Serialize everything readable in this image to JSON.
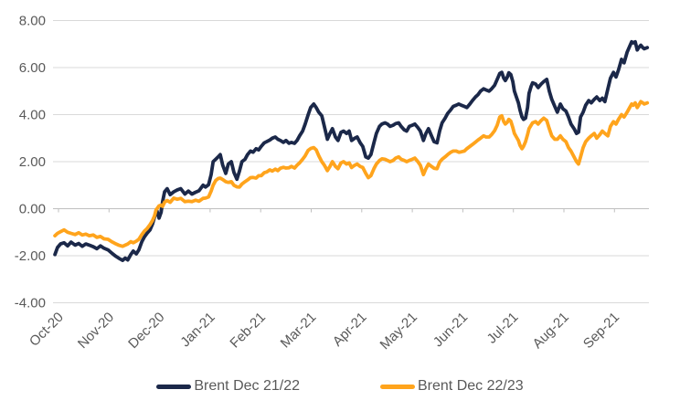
{
  "figure": {
    "background": "#ffffff"
  },
  "chart_data": {
    "type": "line",
    "title": "",
    "xlabel": "",
    "ylabel": "",
    "grid": true,
    "legend_position": "bottom",
    "colors": {
      "series1": "#1b2849",
      "series2": "#ffa41c",
      "grid": "#d9d9d9",
      "axis": "#bfbfbf",
      "label_text": "#595959"
    },
    "y_axis": {
      "ylim": [
        -4,
        8
      ],
      "tick_values": [
        8,
        6,
        4,
        2,
        0,
        -2,
        -4
      ],
      "tick_labels": [
        "8.00",
        "6.00",
        "4.00",
        "2.00",
        "0.00",
        "-2.00",
        "-4.00"
      ]
    },
    "x_axis": {
      "unit": "months since Oct-2020",
      "tick_values": [
        0,
        1,
        2,
        3,
        4,
        5,
        6,
        7,
        8,
        9,
        10,
        11
      ],
      "tick_labels": [
        "Oct-20",
        "Nov-20",
        "Dec-20",
        "Jan-21",
        "Feb-21",
        "Mar-21",
        "Apr-21",
        "May-21",
        "Jun-21",
        "Jul-21",
        "Aug-21",
        "Sep-21"
      ]
    },
    "x": [
      -0.07,
      -0.02,
      0.04,
      0.11,
      0.18,
      0.25,
      0.33,
      0.4,
      0.47,
      0.54,
      0.61,
      0.69,
      0.76,
      0.83,
      0.9,
      0.98,
      1.05,
      1.12,
      1.19,
      1.27,
      1.32,
      1.37,
      1.43,
      1.48,
      1.54,
      1.59,
      1.65,
      1.7,
      1.75,
      1.81,
      1.86,
      1.9,
      1.93,
      1.95,
      1.99,
      2.03,
      2.06,
      2.1,
      2.15,
      2.21,
      2.28,
      2.35,
      2.42,
      2.5,
      2.57,
      2.64,
      2.71,
      2.78,
      2.86,
      2.91,
      2.97,
      3.02,
      3.06,
      3.11,
      3.16,
      3.2,
      3.25,
      3.31,
      3.36,
      3.42,
      3.47,
      3.53,
      3.58,
      3.63,
      3.69,
      3.74,
      3.8,
      3.85,
      3.91,
      3.96,
      4.01,
      4.07,
      4.12,
      4.18,
      4.23,
      4.29,
      4.34,
      4.39,
      4.45,
      4.5,
      4.56,
      4.61,
      4.67,
      4.72,
      4.77,
      4.83,
      4.88,
      4.94,
      4.99,
      5.05,
      5.1,
      5.15,
      5.21,
      5.26,
      5.32,
      5.37,
      5.42,
      5.48,
      5.53,
      5.59,
      5.64,
      5.7,
      5.75,
      5.8,
      5.86,
      5.91,
      5.97,
      6.02,
      6.08,
      6.13,
      6.18,
      6.24,
      6.29,
      6.35,
      6.4,
      6.46,
      6.51,
      6.56,
      6.62,
      6.67,
      6.73,
      6.78,
      6.84,
      6.89,
      6.94,
      7.0,
      7.05,
      7.11,
      7.16,
      7.22,
      7.27,
      7.32,
      7.38,
      7.43,
      7.49,
      7.54,
      7.59,
      7.65,
      7.7,
      7.76,
      7.81,
      7.87,
      7.92,
      7.97,
      8.03,
      8.08,
      8.14,
      8.19,
      8.25,
      8.3,
      8.35,
      8.41,
      8.46,
      8.52,
      8.57,
      8.63,
      8.68,
      8.73,
      8.77,
      8.81,
      8.84,
      8.88,
      8.91,
      8.95,
      8.99,
      9.02,
      9.06,
      9.1,
      9.13,
      9.17,
      9.2,
      9.24,
      9.28,
      9.31,
      9.35,
      9.38,
      9.44,
      9.49,
      9.55,
      9.6,
      9.66,
      9.71,
      9.76,
      9.82,
      9.87,
      9.93,
      9.98,
      10.04,
      10.09,
      10.14,
      10.2,
      10.25,
      10.29,
      10.33,
      10.38,
      10.43,
      10.49,
      10.54,
      10.6,
      10.65,
      10.71,
      10.76,
      10.81,
      10.87,
      10.92,
      10.98,
      11.03,
      11.08,
      11.14,
      11.19,
      11.25,
      11.3,
      11.34,
      11.37,
      11.41,
      11.45,
      11.48,
      11.52,
      11.56,
      11.59,
      11.65
    ],
    "series": [
      {
        "name": "Brent Dec 21/22",
        "color_key": "series1",
        "values": [
          -1.95,
          -1.65,
          -1.5,
          -1.45,
          -1.58,
          -1.42,
          -1.55,
          -1.48,
          -1.6,
          -1.5,
          -1.55,
          -1.62,
          -1.7,
          -1.58,
          -1.68,
          -1.75,
          -1.88,
          -2.0,
          -2.1,
          -2.2,
          -2.1,
          -2.18,
          -1.95,
          -1.8,
          -1.92,
          -1.75,
          -1.4,
          -1.2,
          -1.05,
          -0.9,
          -0.65,
          -0.35,
          -0.15,
          -0.1,
          -0.4,
          -0.15,
          0.3,
          0.72,
          0.85,
          0.6,
          0.72,
          0.8,
          0.85,
          0.62,
          0.75,
          0.62,
          0.7,
          0.76,
          1.0,
          0.92,
          1.02,
          1.45,
          2.0,
          2.1,
          2.2,
          2.3,
          1.85,
          1.5,
          1.9,
          2.0,
          1.55,
          1.25,
          1.6,
          2.0,
          2.1,
          2.3,
          2.45,
          2.4,
          2.55,
          2.5,
          2.65,
          2.8,
          2.85,
          2.92,
          3.0,
          3.05,
          2.95,
          2.9,
          2.82,
          2.9,
          2.78,
          2.82,
          2.78,
          2.9,
          3.1,
          3.3,
          3.6,
          4.0,
          4.3,
          4.45,
          4.3,
          4.1,
          3.95,
          3.5,
          2.95,
          3.2,
          3.4,
          3.05,
          2.9,
          3.25,
          3.3,
          3.2,
          3.3,
          2.9,
          3.0,
          3.05,
          2.8,
          2.65,
          2.2,
          2.15,
          2.3,
          2.8,
          3.2,
          3.5,
          3.6,
          3.65,
          3.6,
          3.5,
          3.55,
          3.62,
          3.65,
          3.5,
          3.35,
          3.3,
          3.5,
          3.55,
          3.6,
          3.45,
          3.3,
          2.9,
          3.2,
          3.4,
          3.1,
          2.85,
          2.8,
          3.3,
          3.65,
          3.85,
          4.05,
          4.2,
          4.35,
          4.4,
          4.45,
          4.4,
          4.35,
          4.3,
          4.45,
          4.6,
          4.75,
          4.85,
          5.0,
          5.1,
          5.05,
          5.0,
          5.1,
          5.25,
          5.5,
          5.75,
          5.8,
          5.55,
          5.45,
          5.6,
          5.78,
          5.7,
          5.4,
          5.0,
          4.75,
          4.5,
          4.2,
          3.9,
          3.8,
          3.85,
          4.3,
          4.9,
          5.2,
          5.35,
          5.3,
          5.15,
          5.3,
          5.4,
          5.5,
          5.0,
          4.65,
          4.35,
          4.1,
          4.45,
          4.25,
          4.15,
          3.9,
          3.6,
          3.4,
          3.2,
          3.25,
          3.9,
          4.1,
          4.4,
          4.6,
          4.5,
          4.65,
          4.75,
          4.6,
          4.7,
          4.55,
          5.1,
          5.55,
          5.8,
          5.6,
          5.9,
          6.35,
          6.2,
          6.65,
          6.9,
          7.1,
          7.05,
          7.1,
          6.75,
          6.85,
          6.95,
          6.85,
          6.8,
          6.85
        ]
      },
      {
        "name": "Brent Dec 22/23",
        "color_key": "series2",
        "values": [
          -1.15,
          -1.05,
          -0.98,
          -0.9,
          -1.0,
          -1.05,
          -1.1,
          -1.02,
          -1.12,
          -1.08,
          -1.15,
          -1.12,
          -1.22,
          -1.18,
          -1.28,
          -1.3,
          -1.4,
          -1.48,
          -1.55,
          -1.6,
          -1.55,
          -1.5,
          -1.4,
          -1.45,
          -1.38,
          -1.3,
          -1.1,
          -0.95,
          -0.85,
          -0.68,
          -0.5,
          -0.3,
          -0.05,
          0.0,
          0.12,
          0.15,
          0.1,
          0.28,
          0.35,
          0.27,
          0.45,
          0.4,
          0.44,
          0.3,
          0.32,
          0.3,
          0.36,
          0.32,
          0.44,
          0.45,
          0.5,
          0.75,
          1.0,
          1.2,
          1.28,
          1.3,
          1.24,
          1.15,
          1.12,
          1.15,
          1.0,
          0.93,
          0.92,
          1.05,
          1.15,
          1.22,
          1.32,
          1.33,
          1.3,
          1.4,
          1.4,
          1.53,
          1.56,
          1.65,
          1.6,
          1.68,
          1.62,
          1.72,
          1.76,
          1.73,
          1.74,
          1.8,
          1.73,
          1.85,
          1.95,
          2.1,
          2.25,
          2.48,
          2.56,
          2.6,
          2.5,
          2.25,
          2.0,
          1.85,
          1.62,
          1.8,
          2.0,
          1.8,
          1.7,
          1.95,
          2.0,
          1.9,
          1.95,
          1.75,
          1.85,
          1.9,
          1.8,
          1.75,
          1.5,
          1.32,
          1.4,
          1.7,
          1.9,
          2.05,
          2.12,
          2.1,
          2.05,
          2.0,
          2.05,
          2.15,
          2.2,
          2.1,
          2.05,
          2.0,
          2.05,
          2.1,
          2.15,
          2.0,
          1.85,
          1.45,
          1.7,
          1.9,
          1.8,
          1.72,
          1.7,
          1.98,
          2.1,
          2.2,
          2.3,
          2.4,
          2.45,
          2.45,
          2.4,
          2.42,
          2.45,
          2.55,
          2.65,
          2.73,
          2.83,
          2.92,
          3.0,
          3.1,
          3.05,
          3.05,
          3.15,
          3.32,
          3.55,
          3.9,
          3.95,
          3.7,
          3.6,
          3.68,
          3.8,
          3.72,
          3.45,
          3.2,
          3.05,
          2.9,
          2.7,
          2.55,
          2.65,
          2.85,
          3.15,
          3.4,
          3.55,
          3.65,
          3.7,
          3.6,
          3.75,
          3.85,
          3.75,
          3.4,
          3.1,
          2.95,
          2.95,
          3.1,
          2.95,
          2.85,
          2.6,
          2.45,
          2.2,
          2.0,
          1.9,
          2.2,
          2.6,
          2.85,
          3.0,
          3.1,
          3.2,
          3.0,
          3.15,
          3.3,
          3.2,
          3.1,
          3.5,
          3.7,
          3.6,
          3.8,
          4.0,
          3.9,
          4.1,
          4.3,
          4.45,
          4.4,
          4.5,
          4.3,
          4.4,
          4.55,
          4.5,
          4.45,
          4.5
        ]
      }
    ]
  },
  "legend": {
    "items": [
      {
        "label": "Brent Dec 21/22"
      },
      {
        "label": "Brent Dec 22/23"
      }
    ]
  }
}
